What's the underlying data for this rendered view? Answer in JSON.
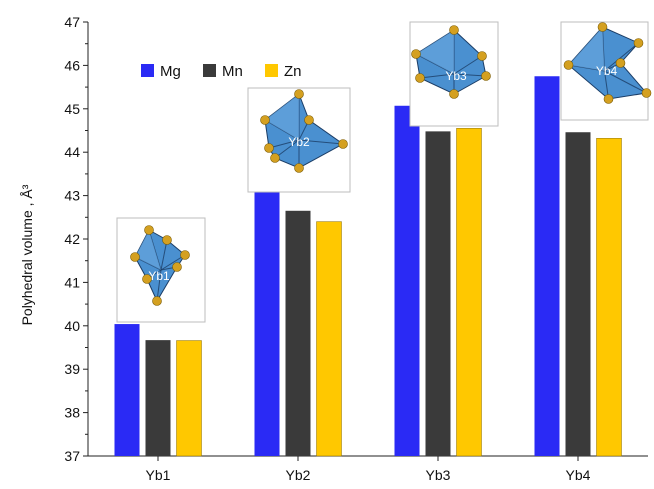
{
  "chart_data": {
    "type": "bar",
    "categories": [
      "Yb1",
      "Yb2",
      "Yb3",
      "Yb4"
    ],
    "series": [
      {
        "name": "Mg",
        "values": [
          40.04,
          43.25,
          45.07,
          45.75
        ]
      },
      {
        "name": "Mn",
        "values": [
          39.67,
          42.65,
          44.48,
          44.46
        ]
      },
      {
        "name": "Zn",
        "values": [
          39.66,
          42.4,
          44.55,
          44.32
        ]
      }
    ],
    "ylabel": "Polyhedral volume , Å³",
    "xlabel": "",
    "title": "",
    "ylim": [
      37,
      47
    ],
    "y_ticks": [
      37,
      38,
      39,
      40,
      41,
      42,
      43,
      44,
      45,
      46,
      47
    ],
    "grid": false,
    "legend_position": "top-left",
    "colors": {
      "Mg": "#2a2af5",
      "Mn": "#3a3a3a",
      "Zn": "#ffc800"
    },
    "polyhedron_color": "#4a90d0",
    "atom_color": "#d4a020",
    "insets": [
      {
        "category": "Yb1",
        "label": "Yb1"
      },
      {
        "category": "Yb2",
        "label": "Yb2"
      },
      {
        "category": "Yb3",
        "label": "Yb3"
      },
      {
        "category": "Yb4",
        "label": "Yb4"
      }
    ]
  }
}
